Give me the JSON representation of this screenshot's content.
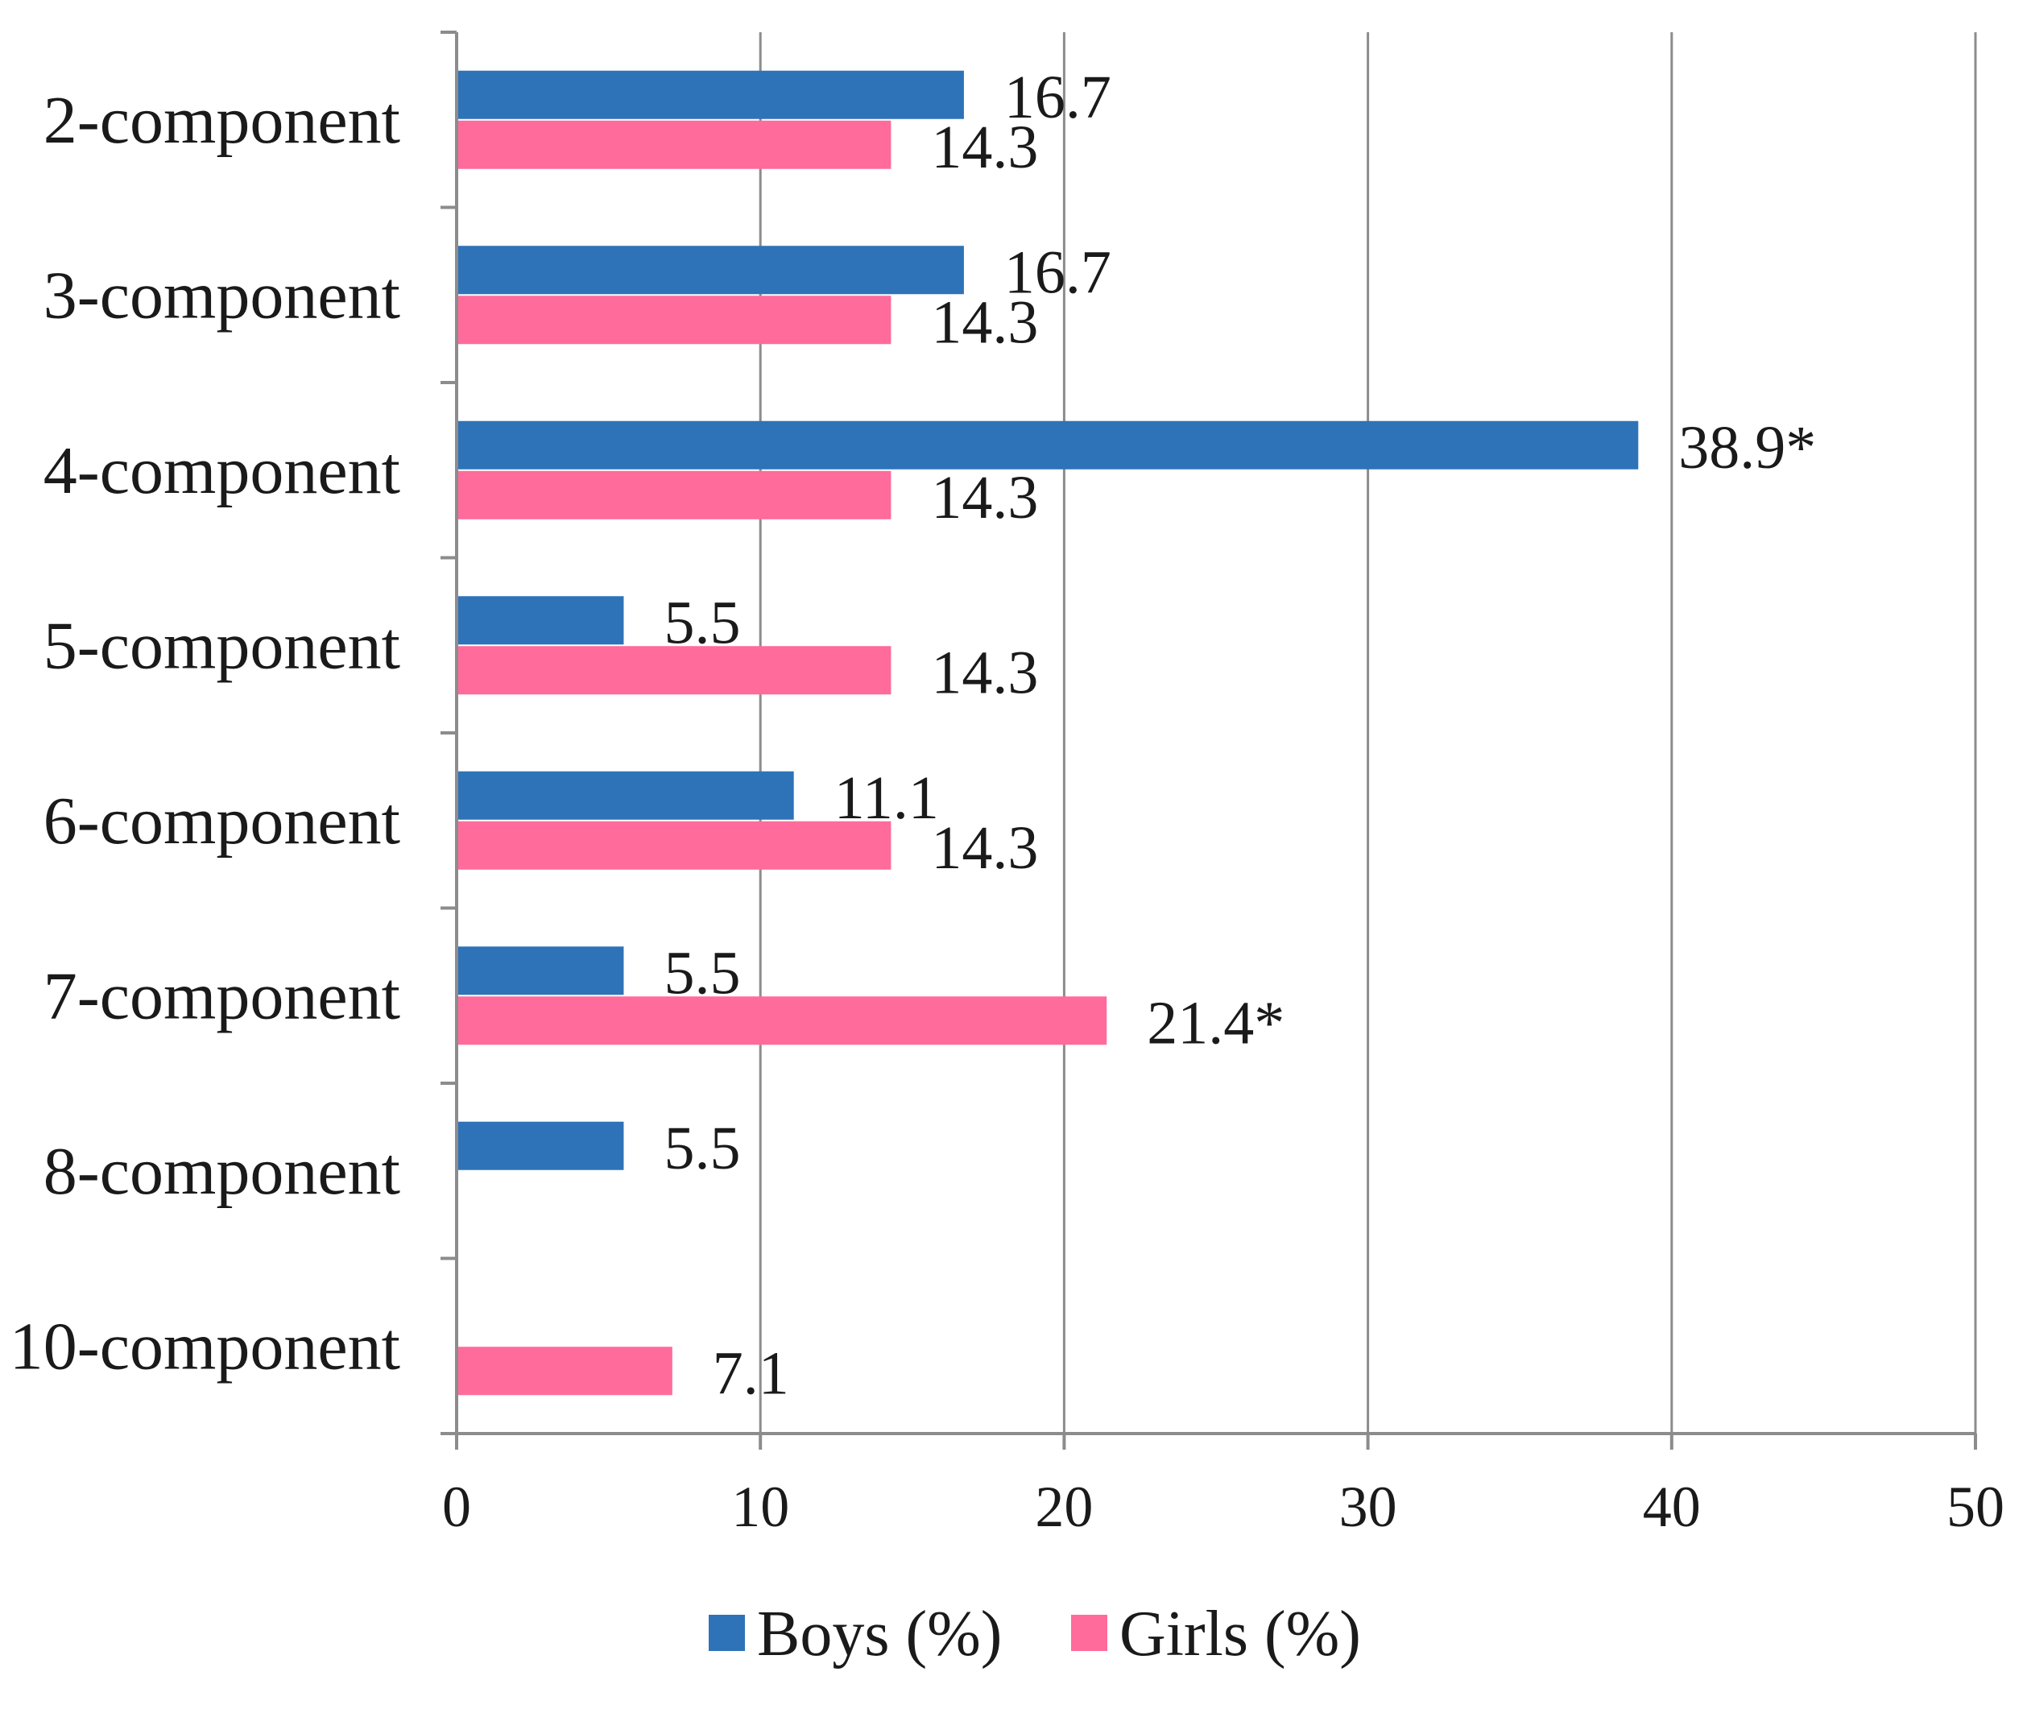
{
  "chart_data": {
    "type": "bar",
    "orientation": "horizontal",
    "categories": [
      "2-component",
      "3-component",
      "4-component",
      "5-component",
      "6-component",
      "7-component",
      "8-component",
      "10-component"
    ],
    "series": [
      {
        "name": "Boys (%)",
        "color": "#2e73b8",
        "values": [
          16.7,
          16.7,
          38.9,
          5.5,
          11.1,
          5.5,
          5.5,
          null
        ],
        "labels": [
          "16.7",
          "16.7",
          "38.9*",
          "5.5",
          "11.1",
          "5.5",
          "5.5",
          null
        ]
      },
      {
        "name": "Girls (%)",
        "color": "#ff6b9a",
        "values": [
          14.3,
          14.3,
          14.3,
          14.3,
          14.3,
          21.4,
          null,
          7.1
        ],
        "labels": [
          "14.3",
          "14.3",
          "14.3",
          "14.3",
          "14.3",
          "21.4*",
          null,
          "7.1"
        ]
      }
    ],
    "xlim": [
      0,
      50
    ],
    "xticks": [
      0,
      10,
      20,
      30,
      40,
      50
    ],
    "title": "",
    "xlabel": "",
    "ylabel": "",
    "grid": true,
    "legend": "bottom-center"
  }
}
